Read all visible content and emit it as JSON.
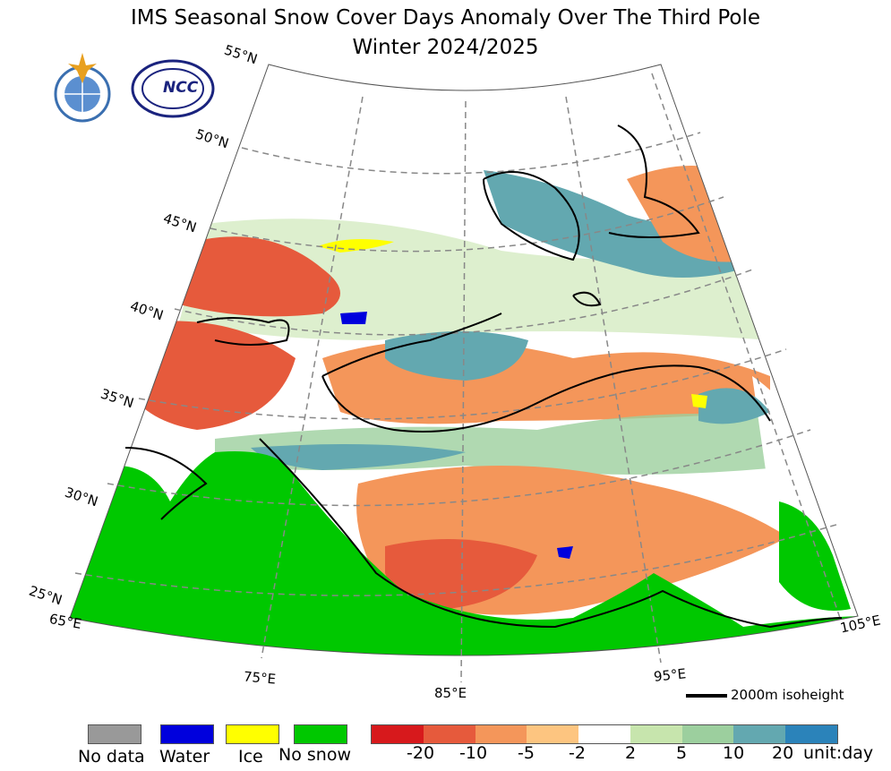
{
  "title_line1": "IMS Seasonal Snow Cover Days Anomaly Over The Third Pole",
  "title_line2": "Winter 2024/2025",
  "lat_labels": [
    "55°N",
    "50°N",
    "45°N",
    "40°N",
    "35°N",
    "30°N",
    "25°N"
  ],
  "lon_labels": [
    "65°E",
    "75°E",
    "85°E",
    "95°E",
    "105°E"
  ],
  "isoheight_label": "2000m isoheight",
  "logos": [
    "wmo-emblem",
    "ncc-logo"
  ],
  "logo_ncc_text": "NCC",
  "categorical_legend": [
    {
      "label": "No data",
      "color": "#999999"
    },
    {
      "label": "Water",
      "color": "#0000dd"
    },
    {
      "label": "Ice",
      "color": "#ffff00"
    },
    {
      "label": "No snow",
      "color": "#00c800"
    }
  ],
  "anomaly_colors": [
    "#d7191c",
    "#e65a3c",
    "#f4965a",
    "#fdc580",
    "#ffffff",
    "#c7e5ad",
    "#9ccf9e",
    "#63a8b0",
    "#2b83ba"
  ],
  "anomaly_ticks": [
    "-20",
    "-10",
    "-5",
    "-2",
    "2",
    "5",
    "10",
    "20"
  ],
  "unit_label": "unit:day"
}
